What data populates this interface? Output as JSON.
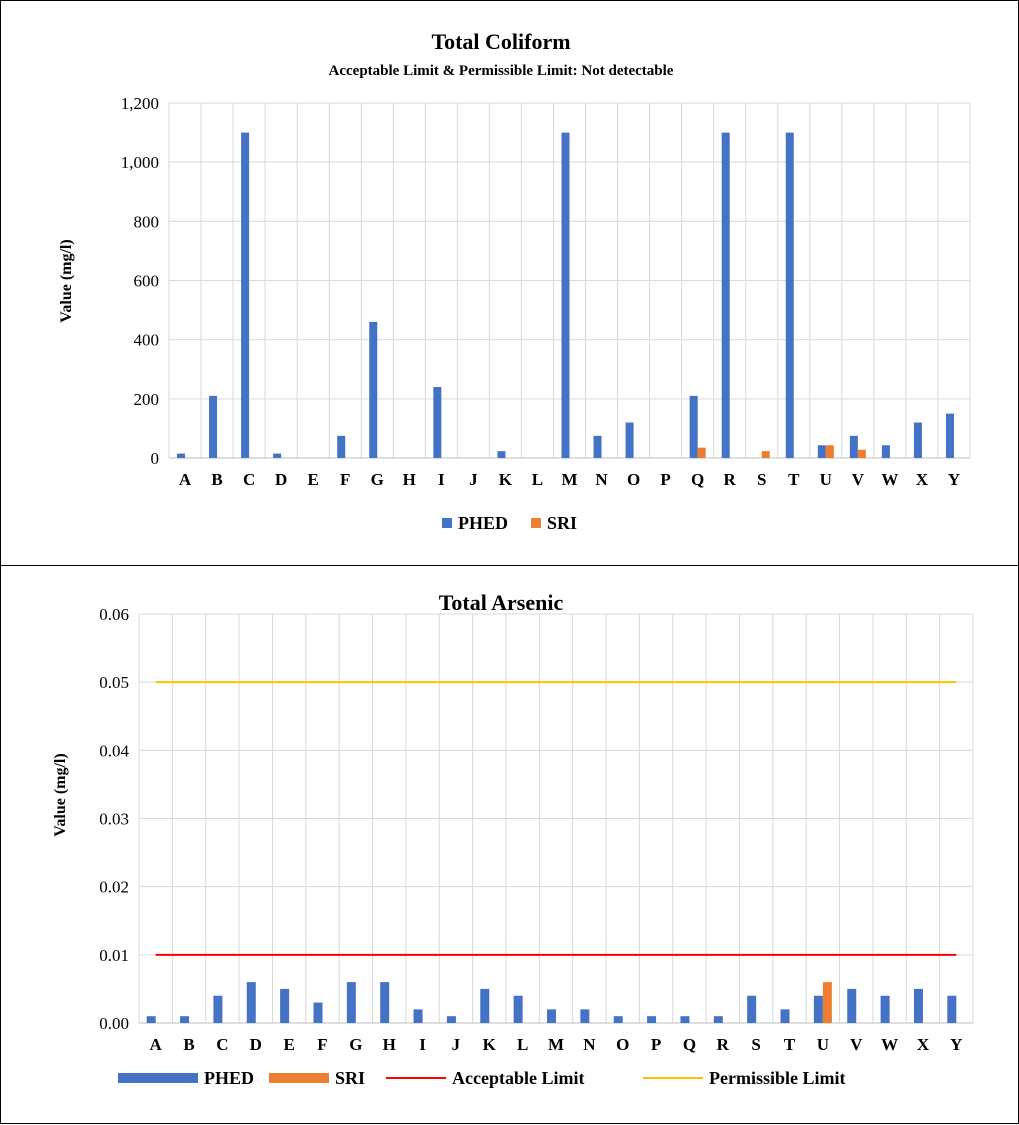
{
  "chart_data": [
    {
      "type": "bar",
      "title": "Total Coliform",
      "subtitle": "Acceptable Limit & Permissible Limit: Not detectable",
      "xlabel": "",
      "ylabel": "Value (mg/l)",
      "ylim": [
        0,
        1200
      ],
      "yticks": [
        "0",
        "200",
        "400",
        "600",
        "800",
        "1,000",
        "1,200"
      ],
      "grid": true,
      "legend_position": "bottom",
      "categories": [
        "A",
        "B",
        "C",
        "D",
        "E",
        "F",
        "G",
        "H",
        "I",
        "J",
        "K",
        "L",
        "M",
        "N",
        "O",
        "P",
        "Q",
        "R",
        "S",
        "T",
        "U",
        "V",
        "W",
        "X",
        "Y"
      ],
      "series": [
        {
          "name": "PHED",
          "color": "#4472C4",
          "values": [
            15,
            210,
            1100,
            15,
            0,
            75,
            460,
            0,
            240,
            0,
            23,
            0,
            1100,
            75,
            120,
            0,
            210,
            1100,
            0,
            1100,
            43,
            75,
            43,
            120,
            150
          ]
        },
        {
          "name": "SRI",
          "color": "#ED7D31",
          "values": [
            0,
            0,
            0,
            0,
            0,
            0,
            0,
            0,
            0,
            0,
            0,
            0,
            0,
            0,
            0,
            0,
            35,
            0,
            23,
            0,
            43,
            28,
            0,
            0,
            0
          ]
        }
      ]
    },
    {
      "type": "bar",
      "title": "Total Arsenic",
      "xlabel": "",
      "ylabel": "Value (mg/l)",
      "ylim": [
        0,
        0.06
      ],
      "yticks": [
        "0.00",
        "0.01",
        "0.02",
        "0.03",
        "0.04",
        "0.05",
        "0.06"
      ],
      "grid": true,
      "legend_position": "bottom",
      "categories": [
        "A",
        "B",
        "C",
        "D",
        "E",
        "F",
        "G",
        "H",
        "I",
        "J",
        "K",
        "L",
        "M",
        "N",
        "O",
        "P",
        "Q",
        "R",
        "S",
        "T",
        "U",
        "V",
        "W",
        "X",
        "Y"
      ],
      "series": [
        {
          "name": "PHED",
          "color": "#4472C4",
          "values": [
            0.001,
            0.001,
            0.004,
            0.006,
            0.005,
            0.003,
            0.006,
            0.006,
            0.002,
            0.001,
            0.005,
            0.004,
            0.002,
            0.002,
            0.001,
            0.001,
            0.001,
            0.001,
            0.004,
            0.002,
            0.004,
            0.005,
            0.004,
            0.005,
            0.004
          ]
        },
        {
          "name": "SRI",
          "color": "#ED7D31",
          "values": [
            0,
            0,
            0,
            0,
            0,
            0,
            0,
            0,
            0,
            0,
            0,
            0,
            0,
            0,
            0,
            0,
            0,
            0,
            0,
            0,
            0.006,
            0,
            0,
            0,
            0
          ]
        }
      ],
      "lines": [
        {
          "name": "Acceptable Limit",
          "color": "#FF0000",
          "value": 0.01
        },
        {
          "name": "Permissible Limit",
          "color": "#FFC000",
          "value": 0.05
        }
      ]
    }
  ]
}
